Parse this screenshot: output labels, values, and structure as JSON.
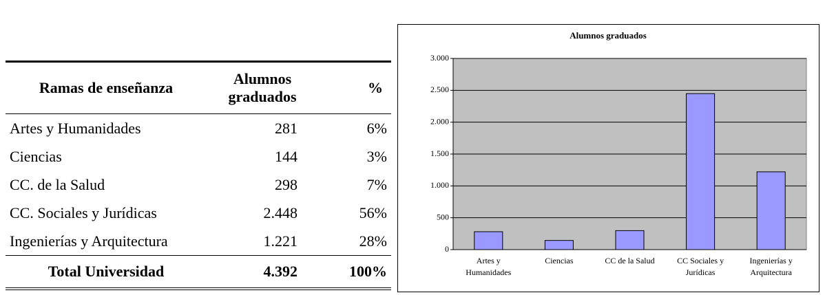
{
  "table": {
    "headers": [
      "Ramas de enseñanza",
      "Alumnos graduados",
      "%"
    ],
    "rows": [
      [
        "Artes y Humanidades",
        "281",
        "6%"
      ],
      [
        "Ciencias",
        "144",
        "3%"
      ],
      [
        "CC. de la Salud",
        "298",
        "7%"
      ],
      [
        "CC. Sociales y Jurídicas",
        "2.448",
        "56%"
      ],
      [
        "Ingenierías y Arquitectura",
        "1.221",
        "28%"
      ]
    ],
    "total": [
      "Total Universidad",
      "4.392",
      "100%"
    ]
  },
  "chart_data": {
    "type": "bar",
    "title": "Alumnos graduados",
    "categories": [
      "Artes y Humanidades",
      "Ciencias",
      "CC de la Salud",
      "CC Sociales y Jurídicas",
      "Ingenierías y Arquitectura"
    ],
    "values": [
      281,
      144,
      298,
      2448,
      1221
    ],
    "color": "#9999ff",
    "plot_background": "#c0c0c0",
    "ylim": [
      0,
      3000
    ],
    "yticks": [
      0,
      500,
      {
        "value": 1000,
        "label": "1.000"
      },
      {
        "value": 1500,
        "label": "1.500"
      },
      {
        "value": 2000,
        "label": "2.000"
      },
      {
        "value": 2500,
        "label": "2.500"
      },
      {
        "value": 3000,
        "label": "3.000"
      }
    ],
    "grid": true
  }
}
